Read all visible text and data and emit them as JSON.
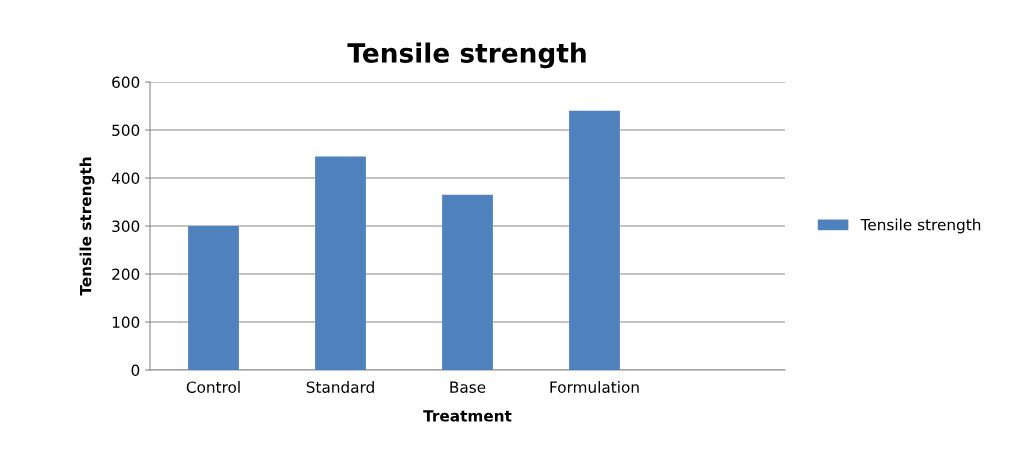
{
  "chart_data": {
    "type": "bar",
    "title": "Tensile strength",
    "xlabel": "Treatment",
    "ylabel": "Tensile strength",
    "categories": [
      "Control",
      "Standard",
      "Base",
      "Formulation",
      null
    ],
    "series": [
      {
        "name": "Tensile strength",
        "color": "#4f81bd",
        "values": [
          300,
          445,
          365,
          540,
          null
        ]
      }
    ],
    "ylim": [
      0,
      600
    ],
    "yticks": [
      0,
      100,
      200,
      300,
      400,
      500,
      600
    ],
    "grid": "y",
    "legend": "right"
  }
}
